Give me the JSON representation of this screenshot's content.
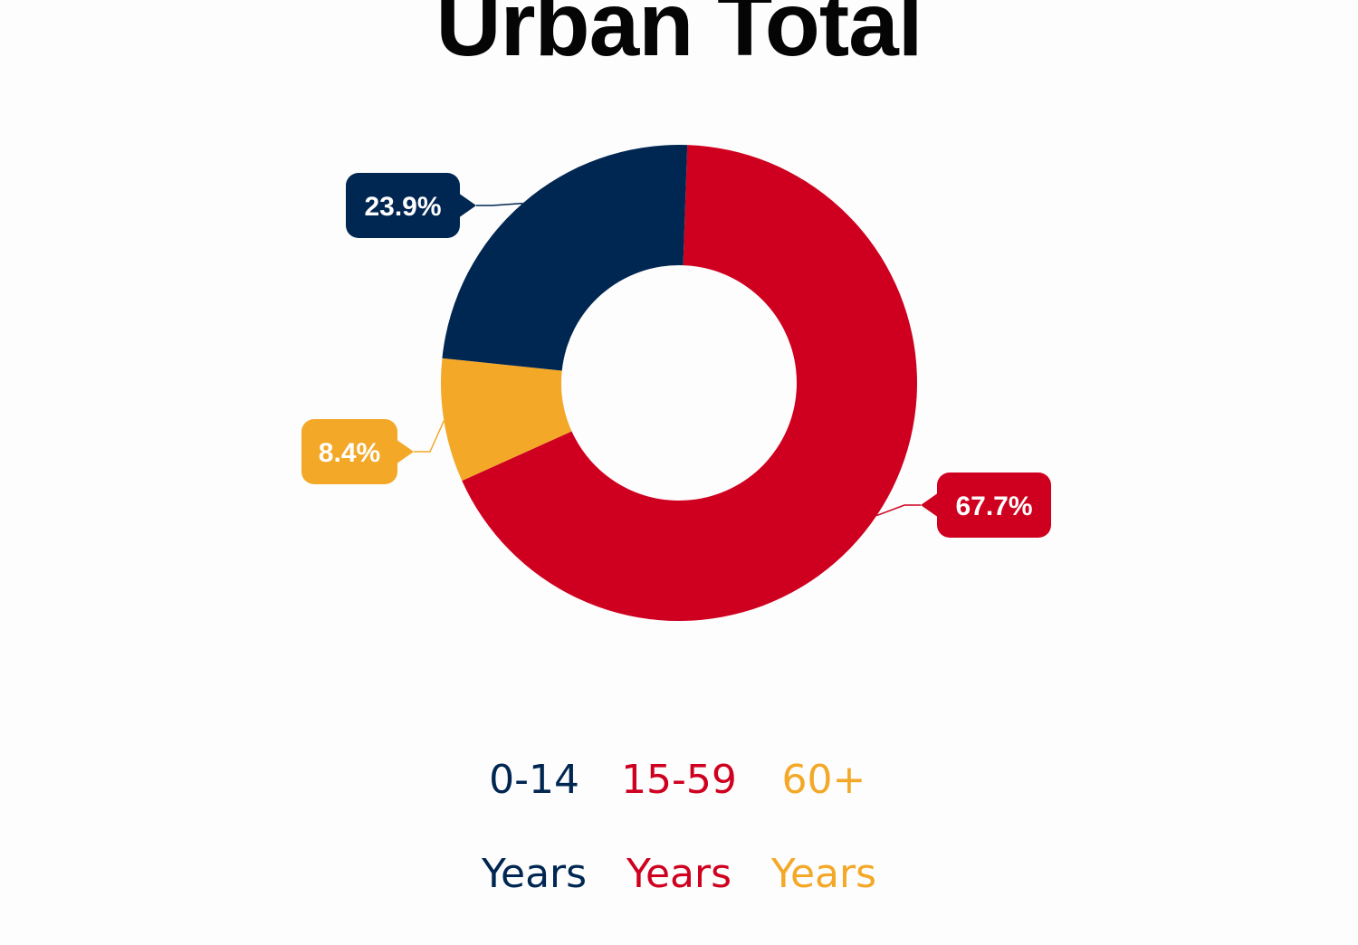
{
  "chart_data": {
    "type": "pie",
    "title": "Urban Total",
    "donut": true,
    "series": [
      {
        "name": "0-14 Years",
        "value": 23.9,
        "label": "23.9%",
        "color": "#002652",
        "legend_line1": "0-14",
        "legend_line2": "Years"
      },
      {
        "name": "15-59 Years",
        "value": 67.7,
        "label": "67.7%",
        "color": "#cf001f",
        "legend_line1": "15-59",
        "legend_line2": "Years"
      },
      {
        "name": "60+ Years",
        "value": 8.4,
        "label": "8.4%",
        "color": "#f3a827",
        "legend_line1": "60+",
        "legend_line2": "Years"
      }
    ],
    "legend_position": "bottom"
  }
}
